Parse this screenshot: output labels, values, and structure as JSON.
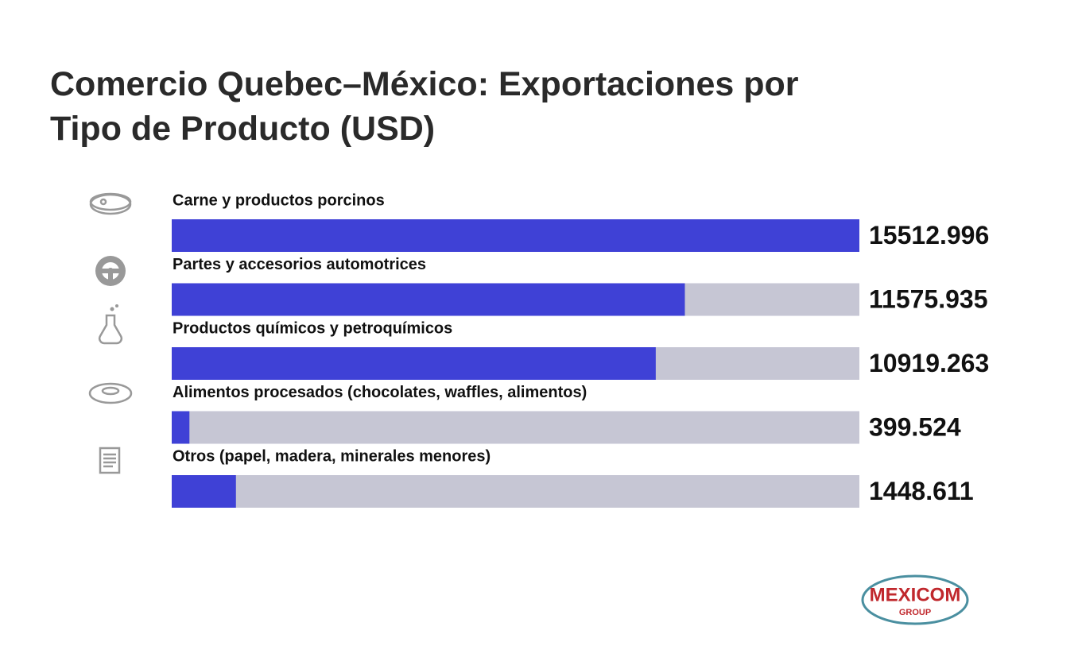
{
  "chart_data": {
    "type": "bar",
    "orientation": "horizontal",
    "title": "Comercio Quebec–México: Exportaciones por Tipo de Producto (USD)",
    "categories": [
      "Carne y productos porcinos",
      "Partes y accesorios automotrices",
      "Productos químicos y petroquímicos",
      "Alimentos procesados (chocolates, waffles, alimentos)",
      "Otros (papel, madera, minerales menores)"
    ],
    "values": [
      15512.996,
      11575.935,
      10919.263,
      399.524,
      1448.611
    ],
    "color": "#3f41d6",
    "track_color": "#c6c6d4",
    "xlim": [
      0,
      15512.996
    ]
  },
  "logo": {
    "name": "MEXICOM",
    "subtitle": "GROUP"
  }
}
